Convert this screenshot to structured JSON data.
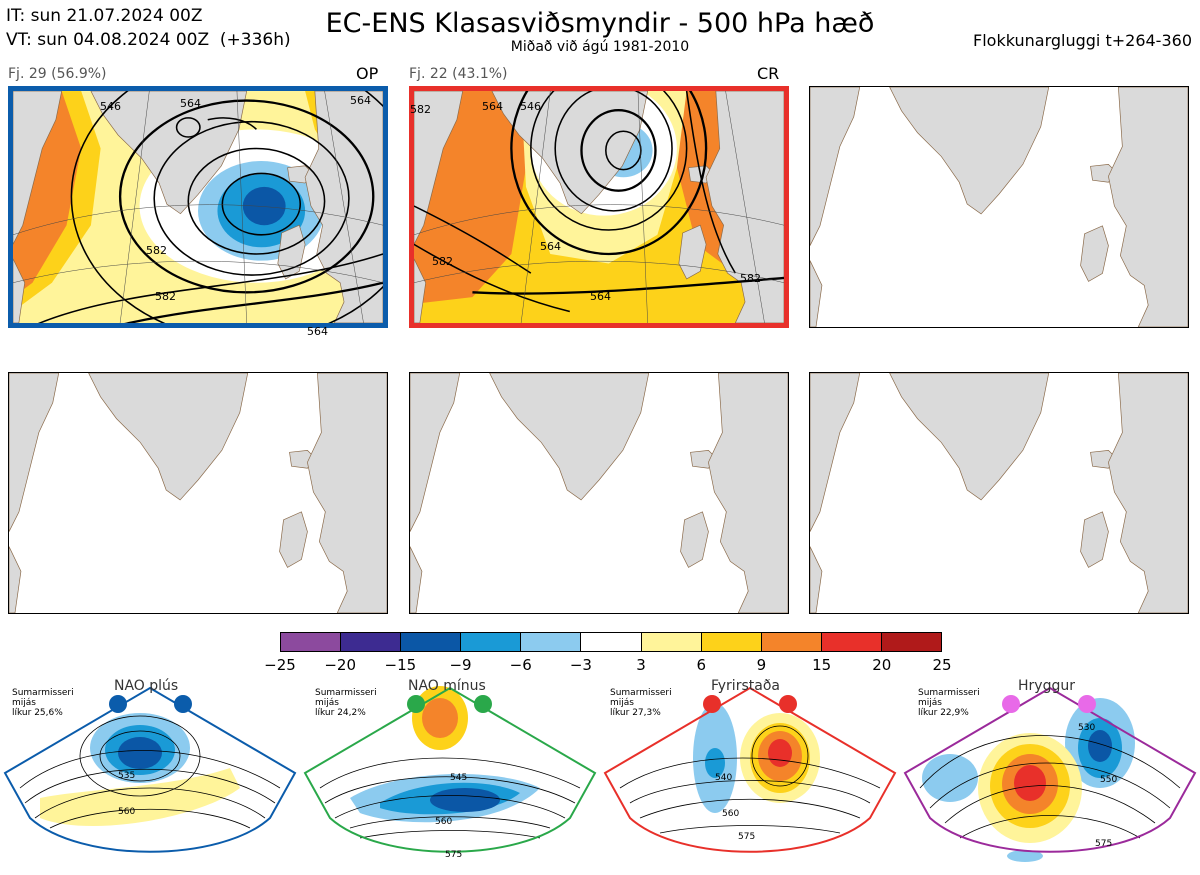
{
  "header": {
    "it_line": "IT: sun 21.07.2024 00Z",
    "vt_line": "VT: sun 04.08.2024 00Z  (+336h)",
    "title": "EC-ENS Klasasviðsmyndir - 500 hPa hæð",
    "subtitle": "Miðað við ágú 1981-2010",
    "window": "Flokkunargluggi t+264-360"
  },
  "clusters": [
    {
      "label": "Fj. 29 (56.9%)",
      "tag": "OP",
      "border_color": "#0b5cab",
      "contour_labels": [
        "546",
        "564",
        "564",
        "582",
        "582",
        "564"
      ]
    },
    {
      "label": "Fj. 22 (43.1%)",
      "tag": "CR",
      "border_color": "#e8302a",
      "contour_labels": [
        "582",
        "564",
        "546",
        "564",
        "564",
        "582",
        "582"
      ]
    }
  ],
  "colorbar": {
    "ticks": [
      "−25",
      "−20",
      "−15",
      "−9",
      "−6",
      "−3",
      "3",
      "6",
      "9",
      "15",
      "20",
      "25"
    ],
    "colors": [
      "#8c4a9e",
      "#3d2b91",
      "#0b57a6",
      "#1a9ad6",
      "#8ccbef",
      "#ffffff",
      "#fff49a",
      "#fdd21a",
      "#f4842a",
      "#e8302a",
      "#b01a1a"
    ]
  },
  "regimes": [
    {
      "name": "NAO plús",
      "season": "Sumarmisseri",
      "line2": "mijás",
      "prob": "líkur 25,6%",
      "color": "#0b5cab",
      "contours": [
        "535",
        "560"
      ]
    },
    {
      "name": "NAO mínus",
      "season": "Sumarmisseri",
      "line2": "mijás",
      "prob": "líkur 24,2%",
      "color": "#2aa84a",
      "contours": [
        "545",
        "560",
        "575"
      ]
    },
    {
      "name": "Fyrirstaða",
      "season": "Sumarmisseri",
      "line2": "mijás",
      "prob": "líkur 27,3%",
      "color": "#e8302a",
      "contours": [
        "540",
        "560",
        "575"
      ]
    },
    {
      "name": "Hryggur",
      "season": "Sumarmisseri",
      "line2": "mijás",
      "prob": "líkur 22,9%",
      "color": "#9b2a9b",
      "contours": [
        "530",
        "550",
        "575"
      ]
    }
  ]
}
